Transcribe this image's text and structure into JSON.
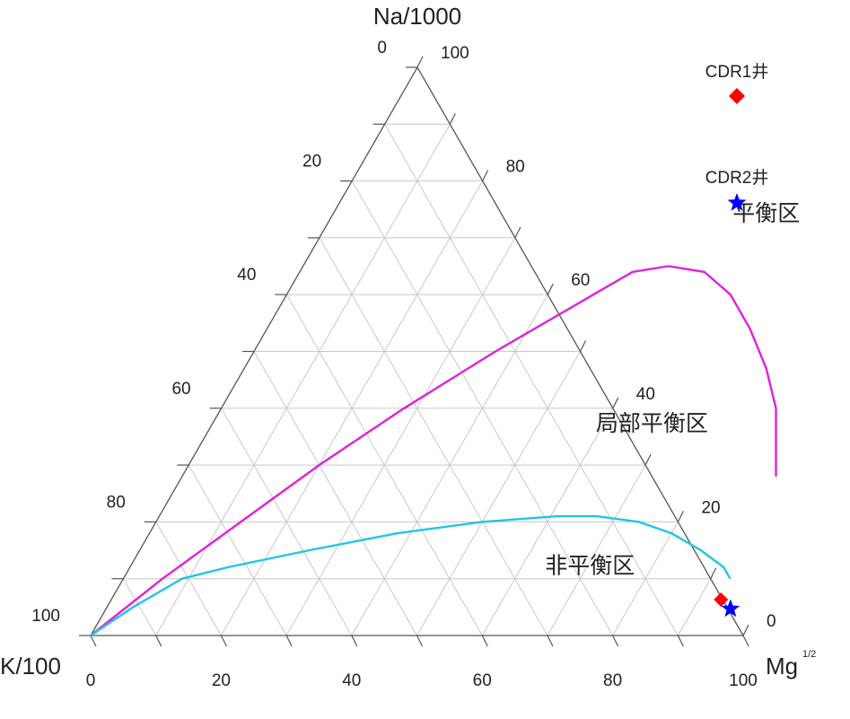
{
  "chart_data": {
    "type": "ternary",
    "axes": {
      "top": {
        "label": "Na/1000"
      },
      "left": {
        "label": "K/100"
      },
      "right": {
        "label": "Mg",
        "superscript": "1/2"
      }
    },
    "ticks": {
      "left_edge": [
        "0",
        "20",
        "40",
        "60",
        "80",
        "100"
      ],
      "right_edge": [
        "100",
        "80",
        "60",
        "40",
        "20",
        "0"
      ],
      "bottom_edge": [
        "0",
        "20",
        "40",
        "60",
        "80",
        "100"
      ]
    },
    "grid": true,
    "regions": [
      {
        "label": "平衡区",
        "na": 73,
        "mg": 67
      },
      {
        "label": "局部平衡区",
        "na": 36,
        "mg": 68
      },
      {
        "label": "非平衡区",
        "na": 11,
        "mg": 71
      }
    ],
    "curves": [
      {
        "name": "",
        "color": "#e020e0",
        "points": [
          [
            0,
            0
          ],
          [
            10,
            6
          ],
          [
            20,
            13
          ],
          [
            30,
            20
          ],
          [
            40,
            28
          ],
          [
            50,
            37
          ],
          [
            60,
            47
          ],
          [
            64,
            51
          ],
          [
            65,
            56
          ],
          [
            64,
            62
          ],
          [
            60,
            68
          ],
          [
            54,
            74
          ],
          [
            47,
            80
          ],
          [
            40,
            85
          ],
          [
            30,
            90
          ],
          [
            28,
            91
          ]
        ]
      },
      {
        "name": "",
        "color": "#22c4e6",
        "points": [
          [
            0,
            0
          ],
          [
            5,
            4
          ],
          [
            10,
            9
          ],
          [
            12,
            15
          ],
          [
            15,
            26
          ],
          [
            18,
            38
          ],
          [
            20,
            50
          ],
          [
            21,
            61
          ],
          [
            21,
            67
          ],
          [
            20,
            74
          ],
          [
            18,
            80
          ],
          [
            15,
            86
          ],
          [
            12,
            91
          ],
          [
            10,
            93
          ]
        ]
      }
    ],
    "series": [
      {
        "name": "CDR1井",
        "marker": "diamond",
        "color": "#ff0000",
        "points": [
          [
            6,
            94
          ]
        ]
      },
      {
        "name": "CDR2井",
        "marker": "star",
        "color": "#0000ff",
        "points": [
          [
            5,
            95
          ]
        ]
      }
    ],
    "legend": {
      "position": "top-right"
    }
  }
}
